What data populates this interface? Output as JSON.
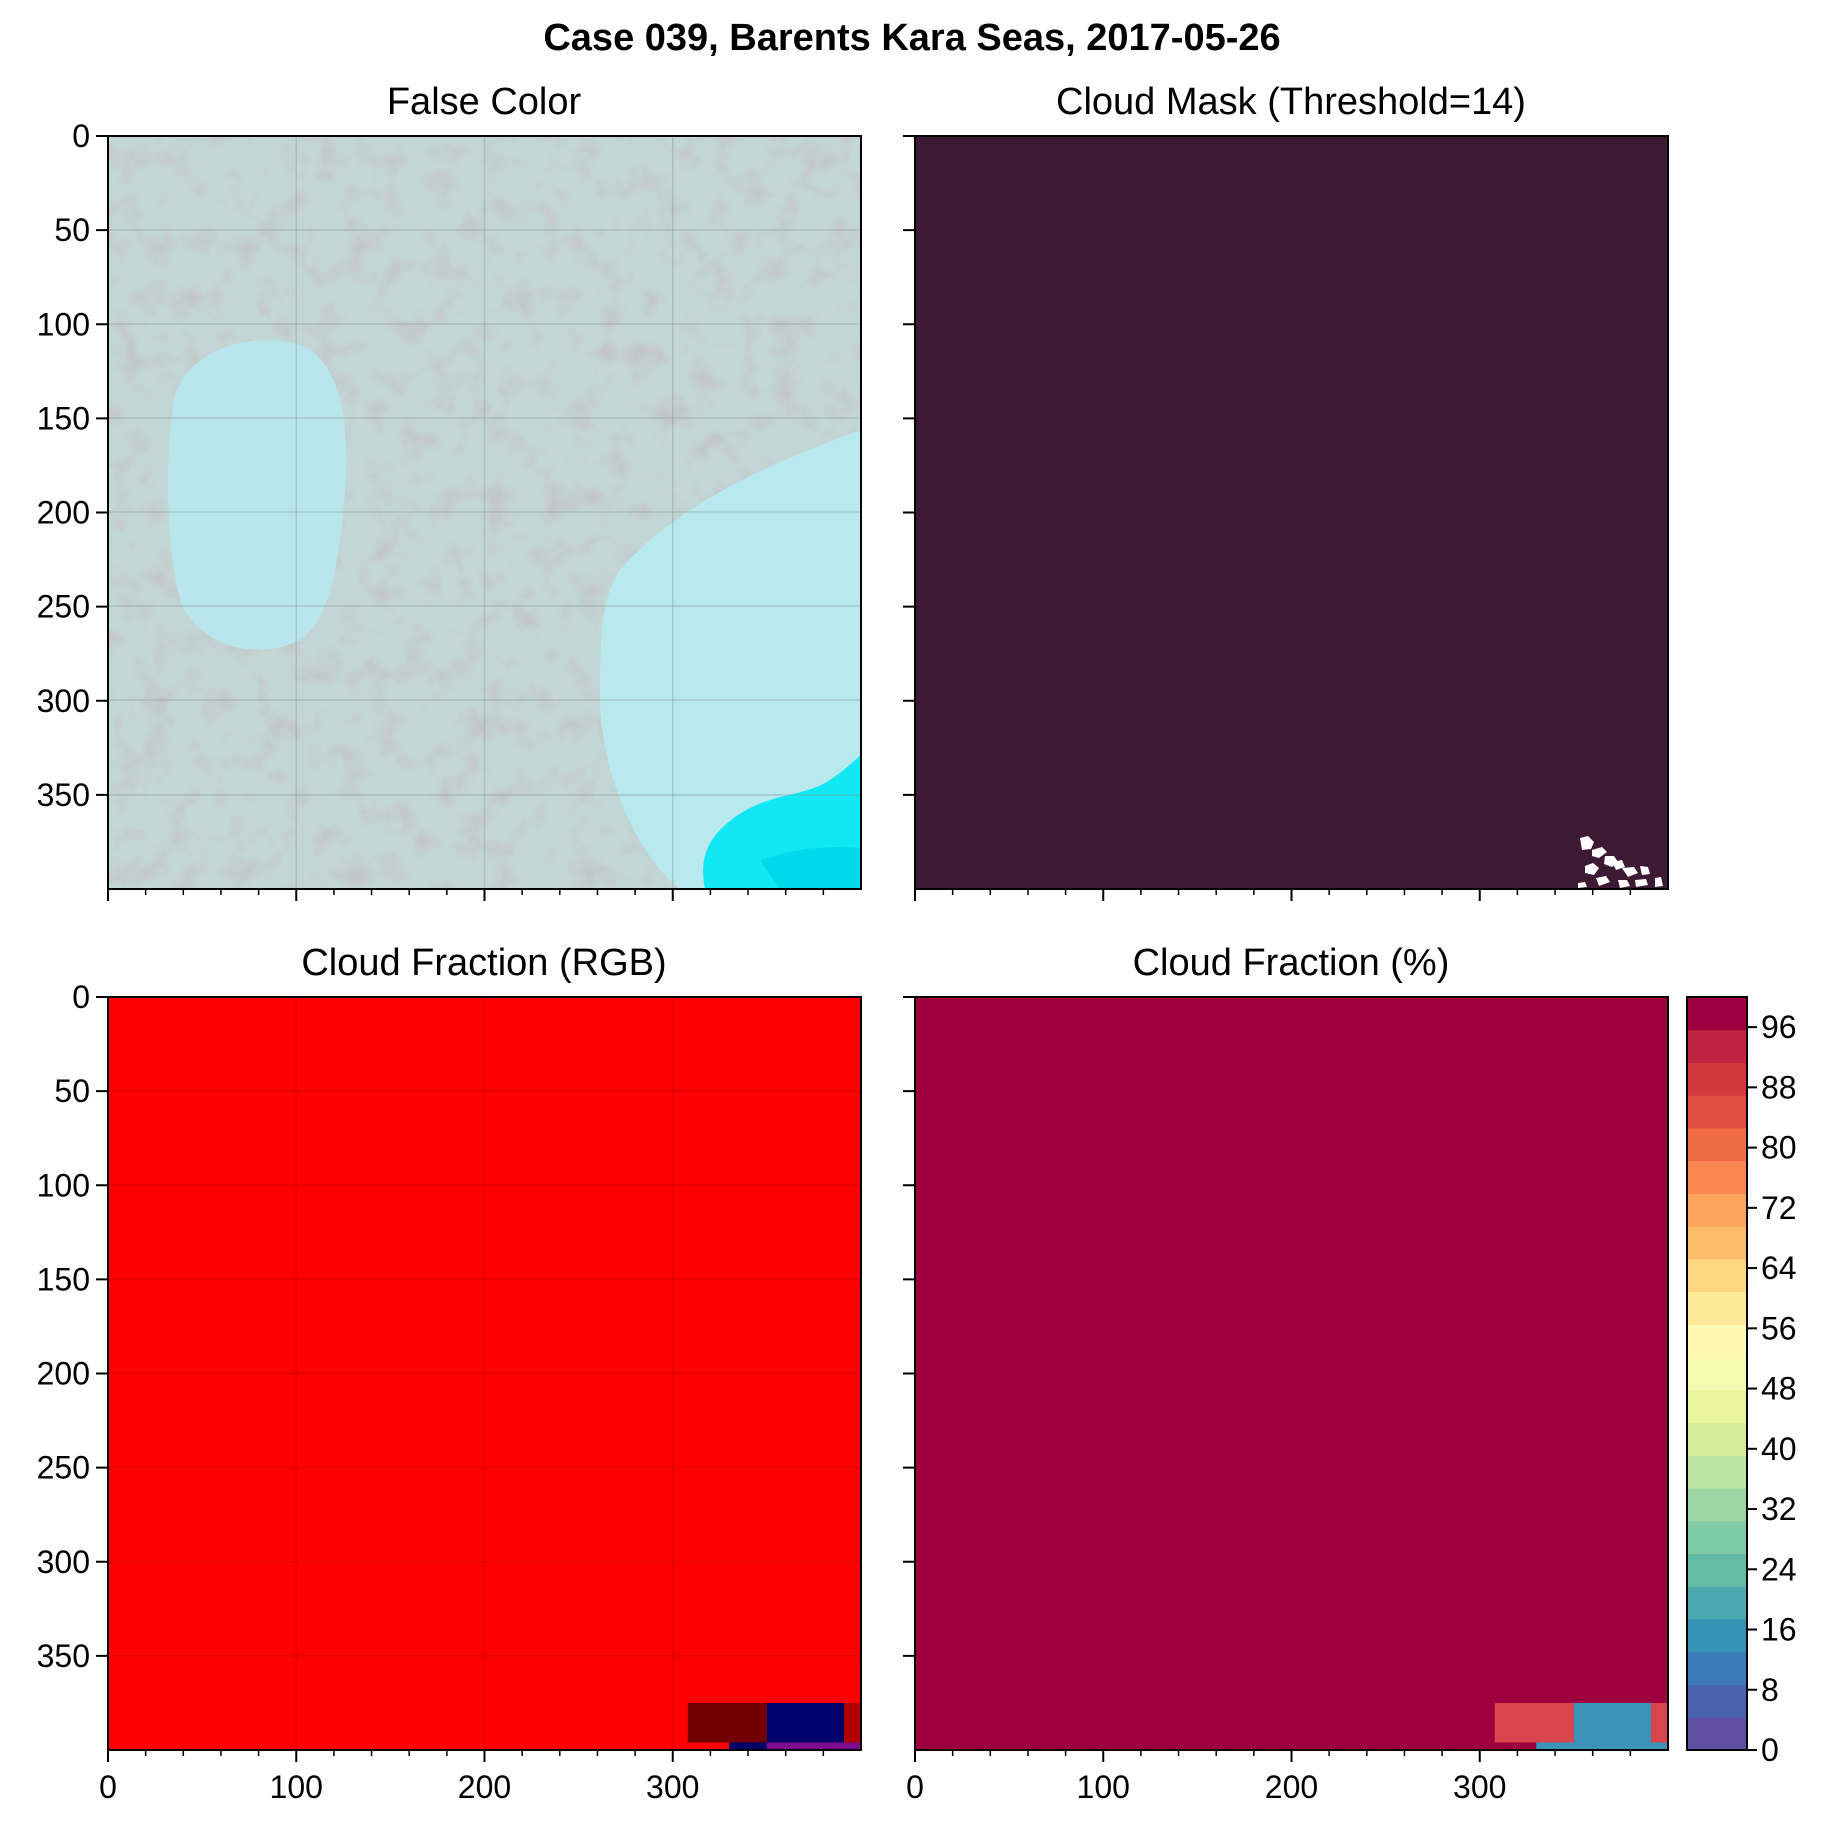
{
  "figure": {
    "title": "Case 039, Barents Kara Seas, 2017-05-26"
  },
  "panels": [
    {
      "id": "false-color",
      "title": "False Color",
      "type": "image"
    },
    {
      "id": "cloud-mask",
      "title": "Cloud Mask (Threshold=14)",
      "type": "image"
    },
    {
      "id": "cloud-fraction-rgb",
      "title": "Cloud Fraction (RGB)",
      "type": "heatmap"
    },
    {
      "id": "cloud-fraction-pct",
      "title": "Cloud Fraction (%)",
      "type": "heatmap"
    }
  ],
  "colors": {
    "mask_cloud": "#3d1a33",
    "mask_clear": "#ffffff",
    "rgb_main": "#ff0000",
    "rgb_dark_red": "#720000",
    "rgb_navy": "#00006a",
    "rgb_purple": "#7a0a90",
    "rgb_red_edge": "#b00000",
    "pct_main": "#9e003f",
    "pct_block_a": "#d9454d",
    "pct_block_b": "#3b93b9",
    "ice_light": "#b8e6ec",
    "cloud_gray": "#c2d2d2",
    "open_water": "#00e8f2"
  },
  "chart_data": [
    {
      "type": "heatmap",
      "title": "False Color",
      "xlim": [
        0,
        400
      ],
      "ylim": [
        400,
        0
      ],
      "xticks": [],
      "yticks": [
        0,
        50,
        100,
        150,
        200,
        250,
        300,
        350
      ],
      "grid": true
    },
    {
      "type": "heatmap",
      "title": "Cloud Mask (Threshold=14)",
      "xlim": [
        0,
        400
      ],
      "ylim": [
        400,
        0
      ],
      "xticks": [],
      "yticks": [],
      "grid": false
    },
    {
      "type": "heatmap",
      "title": "Cloud Fraction (RGB)",
      "xlim": [
        0,
        400
      ],
      "ylim": [
        400,
        0
      ],
      "xticks": [
        0,
        100,
        200,
        300
      ],
      "yticks": [
        0,
        50,
        100,
        150,
        200,
        250,
        300,
        350
      ],
      "grid": true,
      "blocks": [
        {
          "x0": 0,
          "x1": 400,
          "y0": 0,
          "y1": 400,
          "color": "#ff0000"
        },
        {
          "x0": 308,
          "x1": 350,
          "y0": 375,
          "y1": 396,
          "color": "#720000"
        },
        {
          "x0": 350,
          "x1": 391,
          "y0": 375,
          "y1": 396,
          "color": "#00006a"
        },
        {
          "x0": 391,
          "x1": 400,
          "y0": 375,
          "y1": 396,
          "color": "#b00000"
        },
        {
          "x0": 330,
          "x1": 350,
          "y0": 396,
          "y1": 400,
          "color": "#00006a"
        },
        {
          "x0": 350,
          "x1": 400,
          "y0": 396,
          "y1": 400,
          "color": "#7a0a90"
        }
      ]
    },
    {
      "type": "heatmap",
      "title": "Cloud Fraction (%)",
      "xlim": [
        0,
        400
      ],
      "ylim": [
        400,
        0
      ],
      "xticks": [
        0,
        100,
        200,
        300
      ],
      "yticks": [],
      "grid": false,
      "blocks": [
        {
          "x0": 0,
          "x1": 400,
          "y0": 0,
          "y1": 400,
          "color": "#9e003f"
        },
        {
          "x0": 308,
          "x1": 350,
          "y0": 375,
          "y1": 396,
          "color": "#d9454d"
        },
        {
          "x0": 350,
          "x1": 391,
          "y0": 375,
          "y1": 396,
          "color": "#3b93b9"
        },
        {
          "x0": 391,
          "x1": 400,
          "y0": 375,
          "y1": 396,
          "color": "#d9454d"
        },
        {
          "x0": 330,
          "x1": 400,
          "y0": 396,
          "y1": 400,
          "color": "#3b93b9"
        }
      ]
    }
  ],
  "colorbar": {
    "range": [
      0,
      100
    ],
    "ticks": [
      0,
      8,
      16,
      24,
      32,
      40,
      48,
      56,
      64,
      72,
      80,
      88,
      96
    ],
    "colors": [
      "#5e4fa2",
      "#4a62ab",
      "#3d7ab8",
      "#3593b8",
      "#4aa8ae",
      "#63bca6",
      "#7ecba4",
      "#9dd6a4",
      "#bbe3a2",
      "#d6ee9b",
      "#e9f59d",
      "#f6fab1",
      "#fff7b4",
      "#fee999",
      "#fed580",
      "#fdbd6b",
      "#fca35c",
      "#f7874f",
      "#ee6b44",
      "#e0503f",
      "#d3383f",
      "#bf2441",
      "#9e0142"
    ]
  }
}
